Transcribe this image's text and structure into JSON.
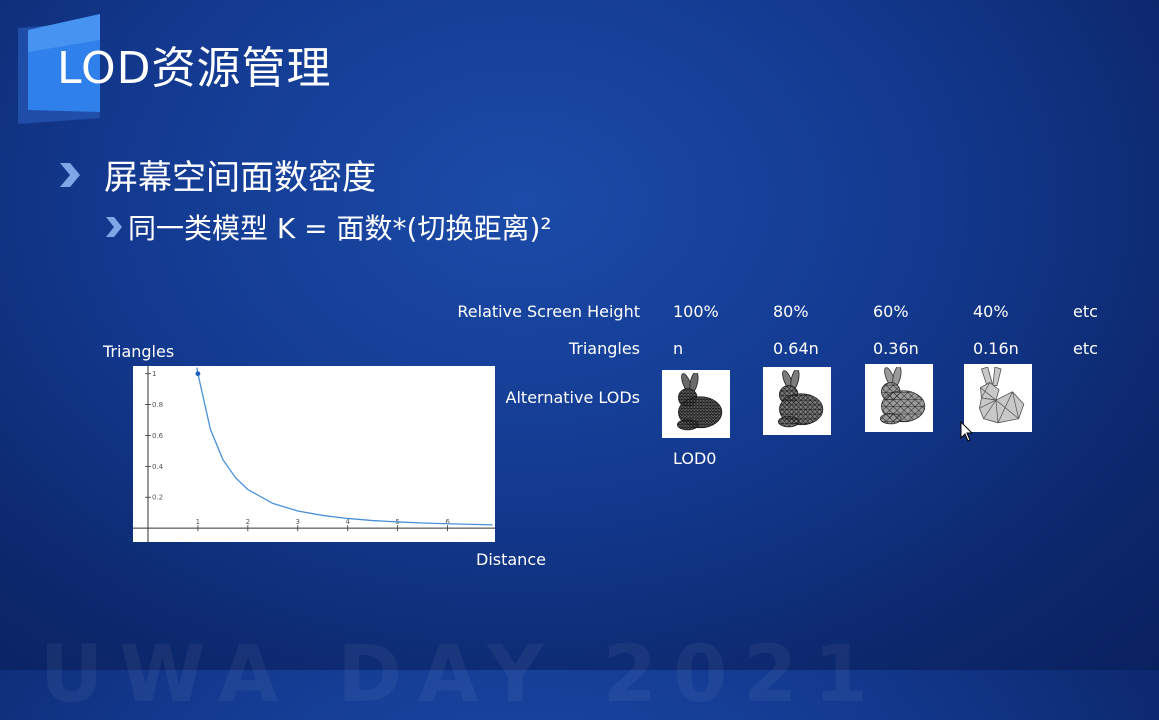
{
  "slide": {
    "title": "LOD资源管理",
    "bullet1": "屏幕空间面数密度",
    "bullet2": "同一类模型 K = 面数*(切换距离)²"
  },
  "table": {
    "row_labels": [
      "Relative Screen Height",
      "Triangles",
      "Alternative LODs"
    ],
    "relative_screen_height": [
      "100%",
      "80%",
      "60%",
      "40%",
      "etc"
    ],
    "triangles": [
      "n",
      "0.64n",
      "0.36n",
      "0.16n",
      "etc"
    ],
    "lod_caption": "LOD0"
  },
  "chart_data": {
    "type": "line",
    "ylabel": "Triangles",
    "xlabel": "Distance",
    "function": "1/x^2",
    "x": [
      0.98,
      1.0,
      1.25,
      1.5,
      1.75,
      2.0,
      2.5,
      3.0,
      3.5,
      4.0,
      4.5,
      5.0,
      5.5,
      6.0,
      6.5,
      6.9
    ],
    "y": [
      1.04,
      1.0,
      0.64,
      0.444,
      0.327,
      0.25,
      0.16,
      0.111,
      0.082,
      0.0625,
      0.049,
      0.04,
      0.033,
      0.028,
      0.024,
      0.021
    ],
    "highlight_point": {
      "x": 1,
      "y": 1
    },
    "xlim": [
      -0.3,
      6.95
    ],
    "ylim": [
      -0.09,
      1.05
    ],
    "x_ticks": [
      1,
      2,
      3,
      4,
      5,
      6
    ],
    "y_ticks": [
      0.2,
      0.4,
      0.6,
      0.8,
      1
    ],
    "line_color": "#4a90d9"
  },
  "icons": {
    "bullet": "chevron-right-icon",
    "cursor": "mouse-cursor-icon",
    "lods": [
      "bunny-lod0-icon",
      "bunny-lod1-icon",
      "bunny-lod2-icon",
      "bunny-lod3-icon"
    ]
  },
  "colors": {
    "accent": "#2f7fe0",
    "bullet_arrow": "#7fa7e8"
  }
}
